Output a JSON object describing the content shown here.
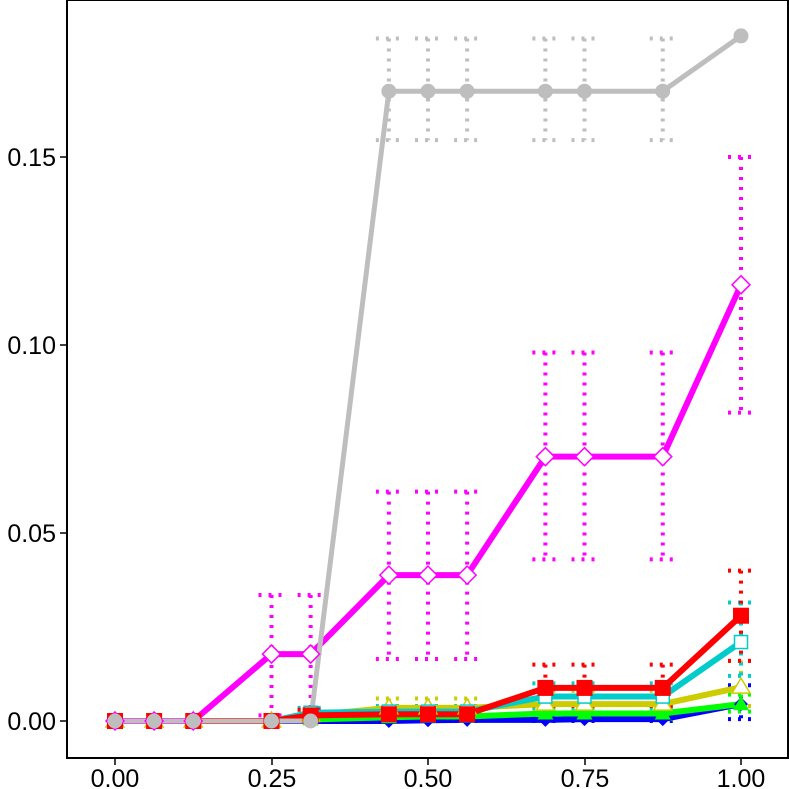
{
  "chart_data": {
    "type": "line",
    "title": "",
    "xlabel": "",
    "ylabel": "",
    "xlim": [
      -0.07,
      1.0
    ],
    "ylim": [
      -0.01,
      0.192
    ],
    "grid": false,
    "x_ticks": [
      "0.00",
      "0.25",
      "0.50",
      "0.75",
      "1.00"
    ],
    "x_tick_values": [
      0.0,
      0.25,
      0.5,
      0.75,
      1.0
    ],
    "y_ticks": [
      "0.00",
      "0.05",
      "0.10",
      "0.15"
    ],
    "y_tick_values": [
      0.0,
      0.05,
      0.1,
      0.15
    ],
    "x": [
      0.0,
      0.0625,
      0.125,
      0.25,
      0.3125,
      0.4375,
      0.5,
      0.5625,
      0.6875,
      0.75,
      0.875,
      1.0
    ],
    "series": [
      {
        "color": "#0000ff",
        "marker": "filled-diamond",
        "x": [
          0.0,
          0.0625,
          0.125,
          0.25,
          0.3125,
          0.4375,
          0.5,
          0.5625,
          0.6875,
          0.75,
          0.875,
          1.0
        ],
        "y": [
          0,
          0,
          0,
          0,
          0,
          0,
          0.0002,
          0.0003,
          0.0003,
          0.0005,
          0.0005,
          0.0045
        ],
        "lower": [
          0,
          0,
          0,
          0,
          0,
          0,
          0,
          0,
          0,
          0,
          0,
          0.0005
        ],
        "upper": [
          0,
          0,
          0,
          0,
          0,
          0.0008,
          0.001,
          0.001,
          0.001,
          0.001,
          0.001,
          0.0095
        ]
      },
      {
        "color": "#00ff00",
        "marker": "filled-triangle",
        "x": [
          0.0,
          0.0625,
          0.125,
          0.25,
          0.3125,
          0.4375,
          0.5,
          0.5625,
          0.6875,
          0.75,
          0.875,
          1.0
        ],
        "y": [
          0,
          0,
          0,
          0,
          0.0004,
          0.001,
          0.0012,
          0.0012,
          0.002,
          0.002,
          0.002,
          0.0045
        ],
        "lower": [
          0,
          0,
          0,
          0,
          0,
          0,
          0.0002,
          0.0002,
          0.0005,
          0.0005,
          0.0005,
          0.0025
        ],
        "upper": [
          0,
          0,
          0,
          0,
          0.001,
          0.002,
          0.0025,
          0.0025,
          0.004,
          0.004,
          0.004,
          0.007
        ]
      },
      {
        "color": "#cccc00",
        "marker": "open-triangle",
        "x": [
          0.0,
          0.0625,
          0.125,
          0.25,
          0.3125,
          0.4375,
          0.5,
          0.5625,
          0.6875,
          0.75,
          0.875,
          1.0
        ],
        "y": [
          0,
          0,
          0,
          0,
          0.0015,
          0.0035,
          0.0035,
          0.0035,
          0.0045,
          0.0045,
          0.0045,
          0.009
        ],
        "lower": [
          0,
          0,
          0,
          0,
          0.0005,
          0.0015,
          0.0015,
          0.0015,
          0.0025,
          0.0025,
          0.0025,
          0.004
        ],
        "upper": [
          0,
          0,
          0,
          0,
          0.003,
          0.006,
          0.006,
          0.006,
          0.008,
          0.008,
          0.008,
          0.016
        ]
      },
      {
        "color": "#00cccc",
        "marker": "open-square",
        "x": [
          0.0,
          0.0625,
          0.125,
          0.25,
          0.3125,
          0.4375,
          0.5,
          0.5625,
          0.6875,
          0.75,
          0.875,
          1.0
        ],
        "y": [
          0,
          0,
          0,
          0,
          0.0022,
          0.0025,
          0.0025,
          0.0025,
          0.0065,
          0.0065,
          0.0065,
          0.021
        ],
        "lower": [
          0,
          0,
          0,
          0,
          0.001,
          0.001,
          0.001,
          0.001,
          0.0035,
          0.0035,
          0.0035,
          0.012
        ],
        "upper": [
          0,
          0,
          0,
          0,
          0.0035,
          0.004,
          0.004,
          0.004,
          0.01,
          0.01,
          0.01,
          0.0315
        ]
      },
      {
        "color": "#ff0000",
        "marker": "filled-square",
        "x": [
          0.0,
          0.0625,
          0.125,
          0.25,
          0.3125,
          0.4375,
          0.5,
          0.5625,
          0.6875,
          0.75,
          0.875,
          1.0
        ],
        "y": [
          0,
          0,
          0,
          0,
          0.0015,
          0.0018,
          0.0018,
          0.0018,
          0.0088,
          0.0088,
          0.0088,
          0.028
        ],
        "lower": [
          0,
          0,
          0,
          0,
          0.0005,
          0.0005,
          0.0005,
          0.0005,
          0.004,
          0.004,
          0.004,
          0.016
        ],
        "upper": [
          0,
          0,
          0,
          0,
          0.003,
          0.003,
          0.003,
          0.003,
          0.015,
          0.015,
          0.015,
          0.04
        ]
      },
      {
        "color": "#ff00ff",
        "marker": "open-diamond",
        "x": [
          0.0,
          0.0625,
          0.125,
          0.25,
          0.3125,
          0.4375,
          0.5,
          0.5625,
          0.6875,
          0.75,
          0.875,
          1.0
        ],
        "y": [
          0,
          0,
          0,
          0.0178,
          0.0178,
          0.0388,
          0.0388,
          0.0388,
          0.0703,
          0.0703,
          0.0703,
          0.116
        ],
        "lower": [
          0,
          0,
          0,
          0.0015,
          0.0015,
          0.0165,
          0.0165,
          0.0165,
          0.043,
          0.043,
          0.043,
          0.082
        ],
        "upper": [
          0,
          0,
          0,
          0.0335,
          0.0335,
          0.061,
          0.061,
          0.061,
          0.098,
          0.098,
          0.098,
          0.15
        ]
      },
      {
        "color": "#bebebe",
        "marker": "filled-circle",
        "x": [
          0.0,
          0.0625,
          0.125,
          0.25,
          0.3125,
          0.4375,
          0.5,
          0.5625,
          0.6875,
          0.75,
          0.875,
          1.0
        ],
        "y": [
          0,
          0,
          0,
          0,
          0,
          0.1675,
          0.1675,
          0.1675,
          0.1675,
          0.1675,
          0.1675,
          0.1822
        ],
        "lower": [
          0,
          0,
          0,
          0,
          0,
          0.1545,
          0.1545,
          0.1545,
          0.1545,
          0.1545,
          0.1545,
          0.1822
        ],
        "upper": [
          0,
          0,
          0,
          0,
          0,
          0.1815,
          0.1815,
          0.1815,
          0.1815,
          0.1815,
          0.1815,
          0.1822
        ]
      }
    ]
  }
}
